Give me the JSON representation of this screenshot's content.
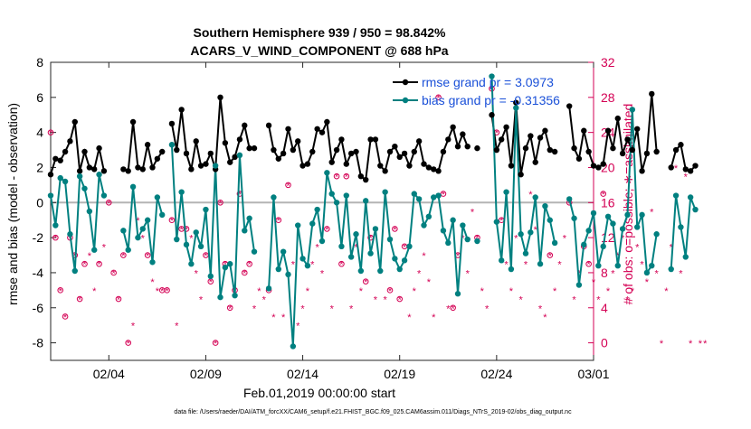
{
  "chart_data": {
    "type": "line",
    "title": "Southern Hemisphere 939 / 950 = 98.842%",
    "subtitle": "ACARS_V_WIND_COMPONENT @ 688 hPa",
    "ylabel_left": "rmse and bias (model - observation)",
    "ylabel_right": "# of obs: o=possible; ∗=assimilated",
    "xlabel": "Feb.01,2019 00:00:00 start",
    "footer": "data file: /Users/raeder/DAI/ATM_forcXX/CAM6_setup/f.e21.FHIST_BGC.f09_025.CAM6assim.011/Diags_NTrS_2019-02/obs_diag_output.nc",
    "x_range": [
      0,
      28
    ],
    "ylim_left": [
      -9,
      8
    ],
    "ylim_right": [
      -2,
      32
    ],
    "y_ticks_left": [
      -8,
      -6,
      -4,
      -2,
      0,
      2,
      4,
      6,
      8
    ],
    "y_ticks_right": [
      0,
      4,
      8,
      12,
      16,
      20,
      24,
      28,
      32
    ],
    "x_ticks": [
      {
        "label": "02/04",
        "value": 3
      },
      {
        "label": "02/09",
        "value": 8
      },
      {
        "label": "02/14",
        "value": 13
      },
      {
        "label": "02/19",
        "value": 18
      },
      {
        "label": "02/24",
        "value": 23
      },
      {
        "label": "03/01",
        "value": 28
      }
    ],
    "legend": [
      {
        "label": "rmse grand pr = 3.0973",
        "color": "#000000"
      },
      {
        "label": "bias grand pr = -0.31356",
        "color": "#008080"
      }
    ],
    "x_step": 0.25,
    "rmse": [
      1.6,
      2.5,
      2.4,
      2.9,
      3.5,
      4.6,
      1.8,
      2.9,
      2.0,
      1.9,
      3.1,
      1.8,
      null,
      null,
      null,
      1.9,
      1.8,
      4.6,
      2.0,
      1.9,
      3.3,
      2.0,
      2.5,
      2.9,
      null,
      4.5,
      3.0,
      5.3,
      2.8,
      1.9,
      3.5,
      2.1,
      2.2,
      2.8,
      1.9,
      6.0,
      3.4,
      2.3,
      2.6,
      3.6,
      4.4,
      3.1,
      3.1,
      null,
      null,
      4.4,
      3.0,
      2.5,
      2.8,
      4.2,
      3.0,
      3.5,
      2.1,
      2.2,
      2.9,
      4.2,
      4.0,
      4.6,
      2.3,
      3.0,
      3.6,
      2.2,
      2.8,
      2.9,
      1.5,
      1.3,
      3.6,
      3.6,
      2.1,
      1.8,
      2.9,
      3.2,
      2.6,
      2.8,
      2.1,
      2.9,
      3.5,
      2.2,
      2.0,
      1.9,
      1.8,
      2.9,
      3.6,
      4.3,
      3.2,
      3.9,
      3.2,
      null,
      3.1,
      null,
      null,
      5.0,
      3.0,
      3.6,
      4.3,
      2.1,
      5.7,
      1.6,
      3.1,
      3.8,
      2.3,
      3.7,
      4.1,
      3.0,
      2.9,
      null,
      null,
      5.5,
      3.1,
      2.5,
      4.1,
      2.9,
      2.1,
      2.0,
      2.2,
      4.1,
      3.1,
      4.8,
      2.8,
      3.6,
      3.0,
      4.2,
      1.8,
      2.8,
      6.2,
      2.9,
      null,
      null,
      2.0,
      3.0,
      3.3,
      1.9,
      1.8,
      2.1,
      null,
      null
    ],
    "bias": [
      0.4,
      -1.3,
      1.4,
      1.2,
      -1.8,
      -3.9,
      1.5,
      0.8,
      -0.5,
      -2.7,
      1.6,
      0.4,
      null,
      null,
      null,
      -1.6,
      -2.7,
      0.9,
      -2.0,
      -1.5,
      -1.0,
      -3.4,
      0.3,
      -0.7,
      null,
      3.3,
      -2.1,
      0.6,
      -2.4,
      -3.5,
      -1.7,
      -2.5,
      -0.4,
      -4.2,
      2.1,
      -5.4,
      -3.7,
      -3.5,
      -5.3,
      2.7,
      -1.6,
      -0.9,
      -2.8,
      null,
      null,
      -4.9,
      0.3,
      -3.8,
      -2.8,
      -4.1,
      -8.2,
      -1.3,
      -3.2,
      -3.6,
      -1.2,
      -0.4,
      -2.2,
      1.7,
      0.5,
      0.0,
      -2.5,
      0.4,
      -3.1,
      -1.8,
      -3.9,
      0.1,
      -2.9,
      -1.5,
      -3.9,
      0.6,
      -2.1,
      -3.2,
      -3.8,
      -3.3,
      -2.5,
      0.5,
      0.2,
      -1.3,
      -0.8,
      0.3,
      0.4,
      -1.6,
      -2.3,
      -1.0,
      -5.2,
      -1.3,
      -2.1,
      null,
      -2.2,
      null,
      null,
      7.2,
      -1.1,
      -3.3,
      0.6,
      -3.8,
      5.4,
      -1.8,
      -2.9,
      -1.7,
      0.3,
      -3.5,
      -0.2,
      -1.0,
      -2.3,
      null,
      null,
      0.2,
      -0.9,
      -4.7,
      -2.4,
      -1.6,
      -0.6,
      -3.6,
      -2.5,
      -0.8,
      -1.2,
      -3.6,
      -1.5,
      -0.7,
      5.3,
      -1.4,
      -0.7,
      -4.0,
      -3.6,
      -1.8,
      null,
      null,
      -3.8,
      0.4,
      -1.4,
      -3.1,
      0.3,
      -0.4,
      null,
      null
    ],
    "obs_possible": [
      24,
      12,
      6,
      3,
      12,
      10,
      5,
      9,
      null,
      null,
      9,
      null,
      16,
      8,
      5,
      10,
      0,
      null,
      null,
      null,
      10,
      null,
      null,
      6,
      6,
      14,
      null,
      13,
      13,
      null,
      null,
      null,
      10,
      7,
      0,
      16,
      9,
      4,
      6,
      17,
      8,
      9,
      null,
      null,
      null,
      6,
      null,
      14,
      null,
      18,
      null,
      null,
      null,
      null,
      null,
      null,
      null,
      13,
      null,
      19,
      9,
      19,
      null,
      null,
      null,
      7,
      12,
      null,
      null,
      null,
      6,
      13,
      5,
      11,
      null,
      null,
      null,
      null,
      null,
      null,
      28,
      17,
      null,
      4,
      10,
      null,
      null,
      null,
      12,
      null,
      null,
      29,
      24,
      14,
      null,
      null,
      null,
      null,
      null,
      null,
      null,
      null,
      null,
      10,
      null,
      null,
      null,
      16,
      null,
      null,
      11,
      9,
      null,
      null,
      17,
      null,
      null,
      null,
      null,
      null,
      null,
      null,
      null,
      null,
      null,
      null,
      null,
      null,
      null,
      null,
      null,
      null,
      null,
      null,
      null
    ],
    "obs_assimilated": [
      24,
      12,
      6,
      3,
      12,
      10,
      5,
      9,
      10,
      6,
      9,
      11,
      16,
      8,
      5,
      10,
      0,
      2,
      14,
      12,
      10,
      7,
      6,
      6,
      6,
      14,
      2,
      13,
      13,
      12,
      8,
      5,
      10,
      7,
      0,
      16,
      9,
      4,
      6,
      17,
      8,
      9,
      4,
      6,
      5,
      6,
      3,
      14,
      3,
      18,
      9,
      2,
      4,
      6,
      9,
      11,
      8,
      13,
      4,
      19,
      9,
      19,
      4,
      11,
      6,
      7,
      12,
      5,
      8,
      5,
      6,
      13,
      5,
      11,
      3,
      6,
      8,
      10,
      7,
      3,
      28,
      17,
      4,
      4,
      10,
      12,
      8,
      15,
      12,
      6,
      4,
      29,
      24,
      14,
      9,
      6,
      12,
      5,
      9,
      17,
      13,
      4,
      3,
      10,
      6,
      9,
      12,
      16,
      5,
      8,
      11,
      9,
      7,
      5,
      17,
      6,
      8,
      10,
      12,
      5,
      6,
      11,
      9,
      7,
      15,
      8,
      0,
      6,
      11,
      20,
      8,
      19,
      0,
      20,
      0,
      0
    ]
  }
}
